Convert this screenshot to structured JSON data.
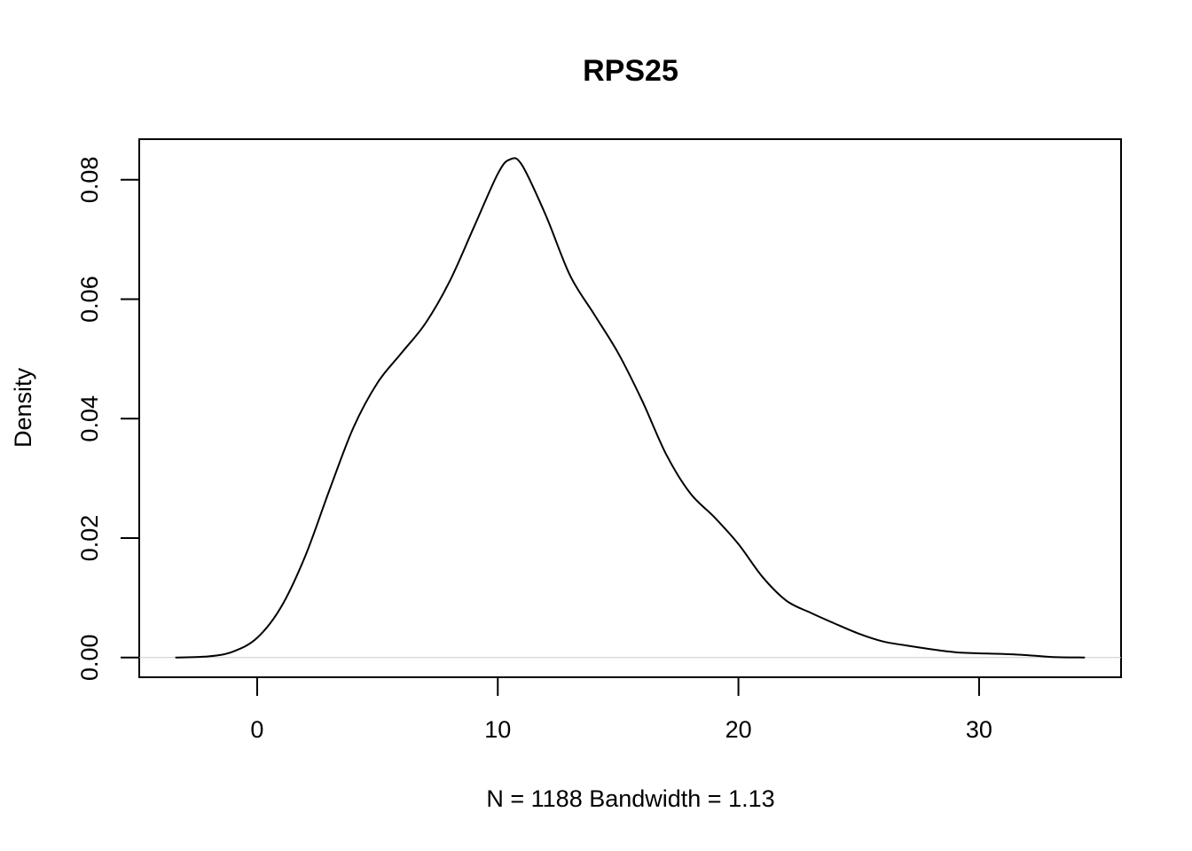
{
  "chart_data": {
    "type": "line",
    "title": "RPS25",
    "xlabel": "N = 1188   Bandwidth = 1.13",
    "ylabel": "Density",
    "xlim": [
      -4.9,
      35.9
    ],
    "ylim": [
      -0.0033,
      0.0868
    ],
    "x_ticks": [
      0,
      10,
      20,
      30
    ],
    "x_tick_labels": [
      "0",
      "10",
      "20",
      "30"
    ],
    "y_ticks": [
      0,
      0.02,
      0.04,
      0.06,
      0.08
    ],
    "y_tick_labels": [
      "0.00",
      "0.02",
      "0.04",
      "0.06",
      "0.08"
    ],
    "grid": false,
    "baseline": 0,
    "line_color": "#000000",
    "baseline_color": "#cccccc",
    "series": [
      {
        "x": [
          -3.4,
          -2.0,
          -1.0,
          0.0,
          1.0,
          2.0,
          3.0,
          4.0,
          5.0,
          6.0,
          7.0,
          8.0,
          9.0,
          10.0,
          10.5,
          11.0,
          12.0,
          13.0,
          14.0,
          15.0,
          16.0,
          17.0,
          18.0,
          19.0,
          20.0,
          21.0,
          22.0,
          23.0,
          24.0,
          25.0,
          26.0,
          27.0,
          28.0,
          29.0,
          30.0,
          31.0,
          32.0,
          33.0,
          34.4
        ],
        "y": [
          0.0,
          0.0002,
          0.001,
          0.0033,
          0.0085,
          0.017,
          0.028,
          0.0385,
          0.046,
          0.051,
          0.056,
          0.063,
          0.072,
          0.081,
          0.0834,
          0.0825,
          0.074,
          0.064,
          0.0575,
          0.051,
          0.043,
          0.034,
          0.0275,
          0.0235,
          0.019,
          0.0135,
          0.0095,
          0.0075,
          0.0057,
          0.004,
          0.0027,
          0.002,
          0.0014,
          0.0009,
          0.0007,
          0.0006,
          0.0004,
          0.0001,
          0.0
        ]
      }
    ]
  }
}
